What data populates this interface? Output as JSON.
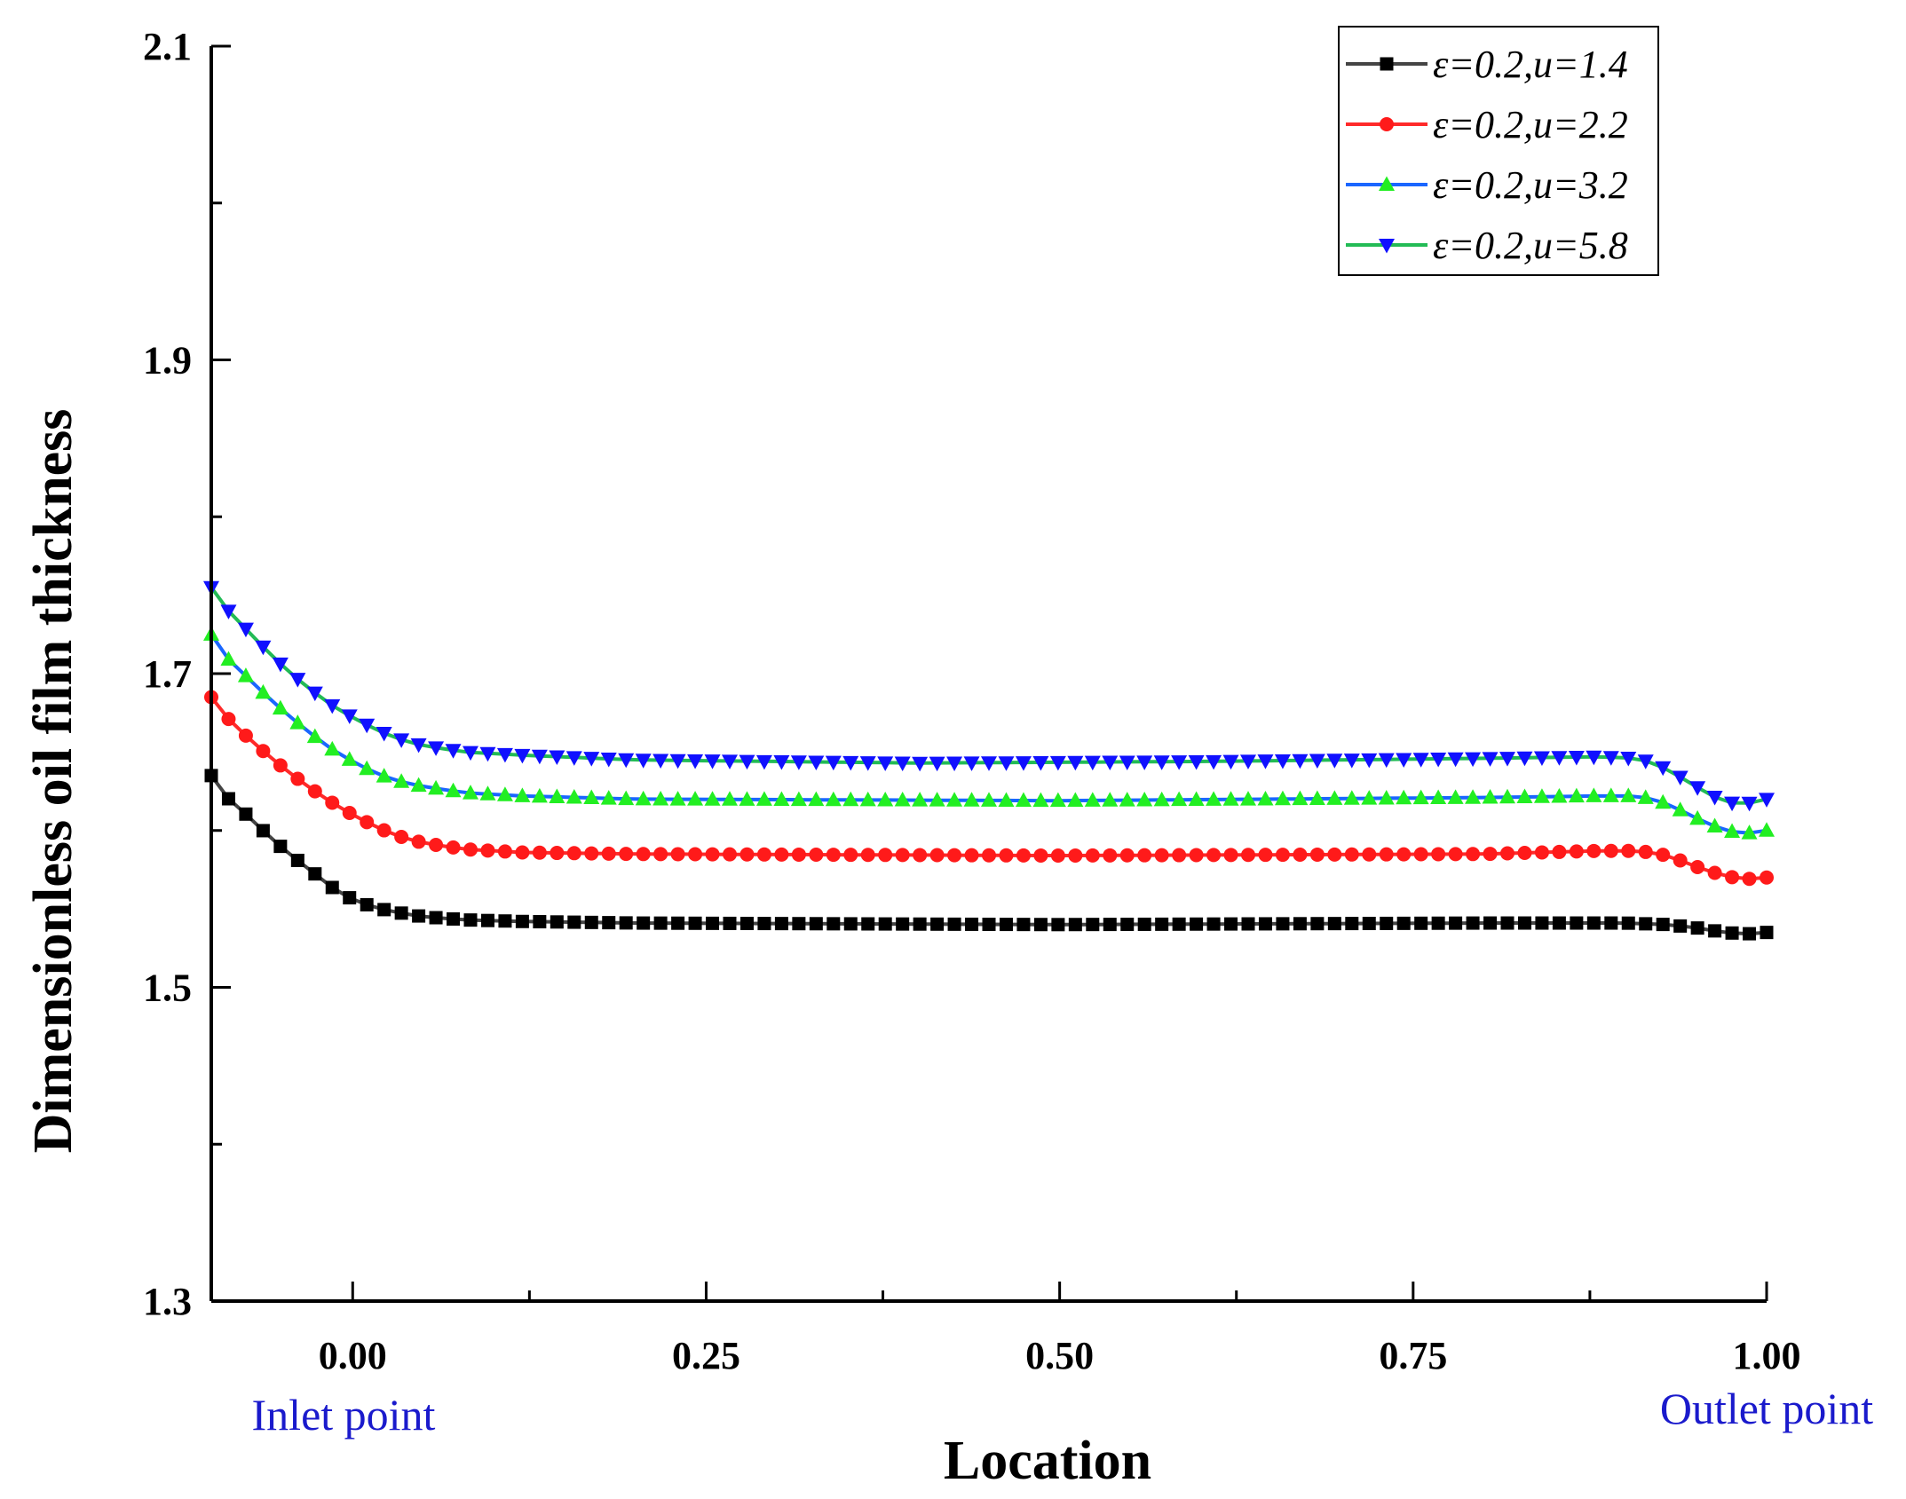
{
  "chart_data": {
    "type": "line",
    "title": "",
    "xlabel": "Location",
    "ylabel": "Dimensionless oil film thickness",
    "xlim": [
      -0.1,
      1.0
    ],
    "ylim": [
      1.3,
      2.1
    ],
    "xticks": [
      0.0,
      0.25,
      0.5,
      0.75,
      1.0
    ],
    "xtick_labels": [
      "0.00",
      "0.25",
      "0.50",
      "0.75",
      "1.00"
    ],
    "xminor": [
      0.125,
      0.375,
      0.625,
      0.875
    ],
    "yticks": [
      1.3,
      1.5,
      1.7,
      1.9,
      2.1
    ],
    "ytick_labels": [
      "1.3",
      "1.5",
      "1.7",
      "1.9",
      "2.1"
    ],
    "yminor": [
      1.4,
      1.6,
      1.8,
      2.0
    ],
    "annotations": {
      "inlet": "Inlet point",
      "outlet": "Outlet point"
    },
    "legend_position": "top-right",
    "series": [
      {
        "name": "ε=0.2,u=1.4",
        "line_color": "#444444",
        "marker_color": "#000000",
        "marker": "square",
        "points": [
          [
            -0.1,
            1.635
          ],
          [
            -0.09,
            1.622
          ],
          [
            -0.075,
            1.61
          ],
          [
            -0.06,
            1.597
          ],
          [
            -0.045,
            1.585
          ],
          [
            -0.03,
            1.575
          ],
          [
            -0.02,
            1.567
          ],
          [
            -0.01,
            1.561
          ],
          [
            0.0,
            1.556
          ],
          [
            0.015,
            1.551
          ],
          [
            0.03,
            1.548
          ],
          [
            0.05,
            1.545
          ],
          [
            0.08,
            1.543
          ],
          [
            0.12,
            1.542
          ],
          [
            0.2,
            1.541
          ],
          [
            0.5,
            1.54
          ],
          [
            0.8,
            1.541
          ],
          [
            0.9,
            1.541
          ],
          [
            0.93,
            1.54
          ],
          [
            0.95,
            1.538
          ],
          [
            0.97,
            1.535
          ],
          [
            0.985,
            1.534
          ],
          [
            1.0,
            1.535
          ]
        ]
      },
      {
        "name": "ε=0.2,u=2.2",
        "line_color": "#ff2a2a",
        "marker_color": "#ff1a1a",
        "marker": "circle",
        "points": [
          [
            -0.1,
            1.685
          ],
          [
            -0.09,
            1.673
          ],
          [
            -0.075,
            1.66
          ],
          [
            -0.06,
            1.648
          ],
          [
            -0.045,
            1.637
          ],
          [
            -0.03,
            1.627
          ],
          [
            -0.015,
            1.618
          ],
          [
            0.0,
            1.61
          ],
          [
            0.015,
            1.603
          ],
          [
            0.03,
            1.597
          ],
          [
            0.05,
            1.592
          ],
          [
            0.08,
            1.588
          ],
          [
            0.12,
            1.586
          ],
          [
            0.2,
            1.585
          ],
          [
            0.5,
            1.584
          ],
          [
            0.8,
            1.585
          ],
          [
            0.88,
            1.587
          ],
          [
            0.91,
            1.587
          ],
          [
            0.93,
            1.584
          ],
          [
            0.95,
            1.577
          ],
          [
            0.97,
            1.571
          ],
          [
            0.985,
            1.569
          ],
          [
            1.0,
            1.57
          ]
        ]
      },
      {
        "name": "ε=0.2,u=3.2",
        "line_color": "#1a66ff",
        "marker_color": "#22ee22",
        "marker": "triangle-up",
        "points": [
          [
            -0.1,
            1.725
          ],
          [
            -0.09,
            1.711
          ],
          [
            -0.075,
            1.698
          ],
          [
            -0.06,
            1.685
          ],
          [
            -0.045,
            1.673
          ],
          [
            -0.03,
            1.662
          ],
          [
            -0.015,
            1.652
          ],
          [
            0.0,
            1.644
          ],
          [
            0.015,
            1.637
          ],
          [
            0.03,
            1.632
          ],
          [
            0.05,
            1.628
          ],
          [
            0.08,
            1.624
          ],
          [
            0.12,
            1.622
          ],
          [
            0.2,
            1.62
          ],
          [
            0.5,
            1.619
          ],
          [
            0.8,
            1.621
          ],
          [
            0.88,
            1.622
          ],
          [
            0.91,
            1.622
          ],
          [
            0.93,
            1.617
          ],
          [
            0.95,
            1.608
          ],
          [
            0.97,
            1.6
          ],
          [
            0.985,
            1.598
          ],
          [
            1.0,
            1.6
          ]
        ]
      },
      {
        "name": "ε=0.2,u=5.8",
        "line_color": "#22bb55",
        "marker_color": "#1010ff",
        "marker": "triangle-down",
        "points": [
          [
            -0.1,
            1.755
          ],
          [
            -0.09,
            1.742
          ],
          [
            -0.075,
            1.728
          ],
          [
            -0.06,
            1.714
          ],
          [
            -0.045,
            1.701
          ],
          [
            -0.03,
            1.69
          ],
          [
            -0.015,
            1.68
          ],
          [
            0.0,
            1.672
          ],
          [
            0.015,
            1.665
          ],
          [
            0.03,
            1.659
          ],
          [
            0.05,
            1.654
          ],
          [
            0.08,
            1.65
          ],
          [
            0.12,
            1.648
          ],
          [
            0.2,
            1.645
          ],
          [
            0.4,
            1.643
          ],
          [
            0.6,
            1.644
          ],
          [
            0.8,
            1.646
          ],
          [
            0.88,
            1.647
          ],
          [
            0.91,
            1.646
          ],
          [
            0.93,
            1.639
          ],
          [
            0.95,
            1.628
          ],
          [
            0.97,
            1.618
          ],
          [
            0.985,
            1.617
          ],
          [
            1.0,
            1.62
          ]
        ]
      }
    ]
  }
}
